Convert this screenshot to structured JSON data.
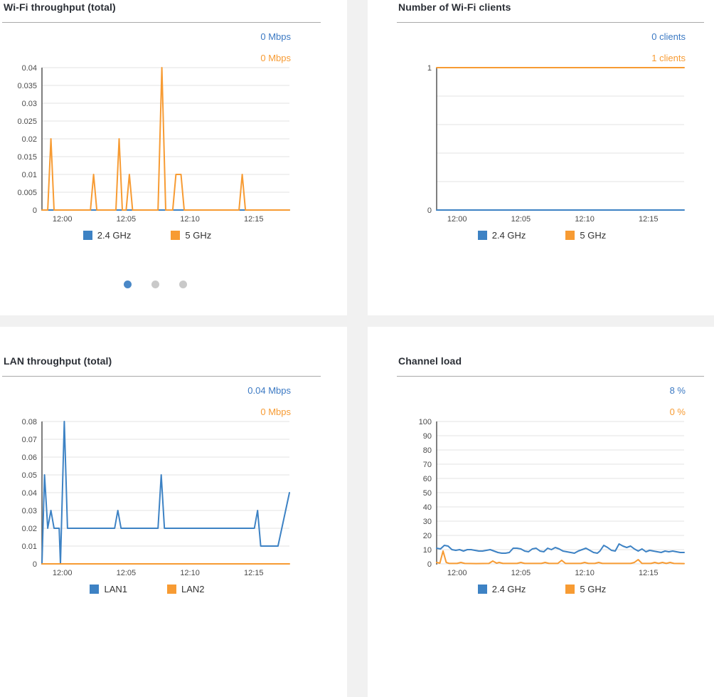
{
  "colors": {
    "blue": "#3d82c4",
    "orange": "#f79b33",
    "value_blue": "#3b79c3",
    "value_orange": "#f79b33",
    "grid_line": "#e3e3e3",
    "axis": "#555555",
    "tick_text": "#4a4a4a",
    "title_text": "#2b2f36",
    "separator": "#a9a9a9",
    "panel_bg": "#ffffff",
    "page_bg": "#f1f1f1",
    "dot_active": "#4a88c7",
    "dot_inactive": "#c9c9c9"
  },
  "panels": [
    {
      "title": "Wi-Fi throughput (total)",
      "values": [
        {
          "text": "0 Mbps",
          "series": "2.4 GHz"
        },
        {
          "text": "0 Mbps",
          "series": "5 GHz"
        }
      ],
      "legend": [
        {
          "label": "2.4 GHz",
          "color": "blue"
        },
        {
          "label": "5 GHz",
          "color": "orange"
        }
      ],
      "pager_dots": {
        "count": 3,
        "active_index": 0
      },
      "chart_index": 0
    },
    {
      "title": "Number of Wi-Fi clients",
      "values": [
        {
          "text": "0 clients",
          "series": "2.4 GHz"
        },
        {
          "text": "1 clients",
          "series": "5 GHz"
        }
      ],
      "legend": [
        {
          "label": "2.4 GHz",
          "color": "blue"
        },
        {
          "label": "5 GHz",
          "color": "orange"
        }
      ],
      "chart_index": 1
    },
    {
      "title": "LAN throughput (total)",
      "values": [
        {
          "text": "0.04 Mbps",
          "series": "LAN1"
        },
        {
          "text": "0 Mbps",
          "series": "LAN2"
        }
      ],
      "legend": [
        {
          "label": "LAN1",
          "color": "blue"
        },
        {
          "label": "LAN2",
          "color": "orange"
        }
      ],
      "chart_index": 2
    },
    {
      "title": "Channel load",
      "values": [
        {
          "text": "8 %",
          "series": "2.4 GHz"
        },
        {
          "text": "0 %",
          "series": "5 GHz"
        }
      ],
      "legend": [
        {
          "label": "2.4 GHz",
          "color": "blue"
        },
        {
          "label": "5 GHz",
          "color": "orange"
        }
      ],
      "chart_index": 3
    }
  ],
  "chart_data": [
    {
      "type": "line",
      "title": "Wi-Fi throughput (total)",
      "xlabel": "",
      "ylabel": "Mbps",
      "x_domain": [
        -1.6,
        17.8
      ],
      "x_ticks": [
        {
          "t": 0,
          "label": "12:00"
        },
        {
          "t": 5,
          "label": "12:05"
        },
        {
          "t": 10,
          "label": "12:10"
        },
        {
          "t": 15,
          "label": "12:15"
        }
      ],
      "ylim": [
        0,
        0.04
      ],
      "y_ticks": [
        {
          "v": 0,
          "label": "0"
        },
        {
          "v": 0.005,
          "label": "0.005"
        },
        {
          "v": 0.01,
          "label": "0.01"
        },
        {
          "v": 0.015,
          "label": "0.015"
        },
        {
          "v": 0.02,
          "label": "0.02"
        },
        {
          "v": 0.025,
          "label": "0.025"
        },
        {
          "v": 0.03,
          "label": "0.03"
        },
        {
          "v": 0.035,
          "label": "0.035"
        },
        {
          "v": 0.04,
          "label": "0.04"
        }
      ],
      "grid": true,
      "legend_position": "bottom",
      "series": [
        {
          "name": "2.4 GHz",
          "color": "blue",
          "points": [
            [
              -1.6,
              0
            ],
            [
              17.8,
              0
            ]
          ]
        },
        {
          "name": "5 GHz",
          "color": "orange",
          "points": [
            [
              -1.6,
              0
            ],
            [
              -1.15,
              0
            ],
            [
              -0.9,
              0.02
            ],
            [
              -0.65,
              0
            ],
            [
              2.2,
              0
            ],
            [
              2.45,
              0.01
            ],
            [
              2.7,
              0
            ],
            [
              4.2,
              0
            ],
            [
              4.45,
              0.02
            ],
            [
              4.7,
              0
            ],
            [
              5.0,
              0
            ],
            [
              5.25,
              0.01
            ],
            [
              5.5,
              0
            ],
            [
              7.5,
              0
            ],
            [
              7.8,
              0.04
            ],
            [
              8.1,
              0
            ],
            [
              8.65,
              0
            ],
            [
              8.9,
              0.01
            ],
            [
              9.3,
              0.01
            ],
            [
              9.55,
              0
            ],
            [
              13.85,
              0
            ],
            [
              14.1,
              0.01
            ],
            [
              14.35,
              0
            ],
            [
              17.8,
              0
            ]
          ]
        }
      ]
    },
    {
      "type": "line",
      "title": "Number of Wi-Fi clients",
      "xlabel": "",
      "ylabel": "clients",
      "x_domain": [
        -1.6,
        17.8
      ],
      "x_ticks": [
        {
          "t": 0,
          "label": "12:00"
        },
        {
          "t": 5,
          "label": "12:05"
        },
        {
          "t": 10,
          "label": "12:10"
        },
        {
          "t": 15,
          "label": "12:15"
        }
      ],
      "ylim": [
        0,
        1
      ],
      "y_ticks": [
        {
          "v": 0,
          "label": "0"
        },
        {
          "v": 0.2,
          "label": ""
        },
        {
          "v": 0.4,
          "label": ""
        },
        {
          "v": 0.6,
          "label": ""
        },
        {
          "v": 0.8,
          "label": ""
        },
        {
          "v": 1,
          "label": "1"
        }
      ],
      "grid": true,
      "legend_position": "bottom",
      "series": [
        {
          "name": "2.4 GHz",
          "color": "blue",
          "points": [
            [
              -1.6,
              0
            ],
            [
              17.8,
              0
            ]
          ]
        },
        {
          "name": "5 GHz",
          "color": "orange",
          "points": [
            [
              -1.6,
              1
            ],
            [
              17.8,
              1
            ]
          ]
        }
      ]
    },
    {
      "type": "line",
      "title": "LAN throughput (total)",
      "xlabel": "",
      "ylabel": "Mbps",
      "x_domain": [
        -1.6,
        17.8
      ],
      "x_ticks": [
        {
          "t": 0,
          "label": "12:00"
        },
        {
          "t": 5,
          "label": "12:05"
        },
        {
          "t": 10,
          "label": "12:10"
        },
        {
          "t": 15,
          "label": "12:15"
        }
      ],
      "ylim": [
        0,
        0.08
      ],
      "y_ticks": [
        {
          "v": 0,
          "label": "0"
        },
        {
          "v": 0.01,
          "label": "0.01"
        },
        {
          "v": 0.02,
          "label": "0.02"
        },
        {
          "v": 0.03,
          "label": "0.03"
        },
        {
          "v": 0.04,
          "label": "0.04"
        },
        {
          "v": 0.05,
          "label": "0.05"
        },
        {
          "v": 0.06,
          "label": "0.06"
        },
        {
          "v": 0.07,
          "label": "0.07"
        },
        {
          "v": 0.08,
          "label": "0.08"
        }
      ],
      "grid": true,
      "legend_position": "bottom",
      "series": [
        {
          "name": "LAN1",
          "color": "blue",
          "points": [
            [
              -1.6,
              0
            ],
            [
              -1.4,
              0.05
            ],
            [
              -1.15,
              0.02
            ],
            [
              -0.9,
              0.03
            ],
            [
              -0.65,
              0.02
            ],
            [
              -0.25,
              0.02
            ],
            [
              -0.15,
              0
            ],
            [
              0.15,
              0.08
            ],
            [
              0.4,
              0.02
            ],
            [
              4.1,
              0.02
            ],
            [
              4.35,
              0.03
            ],
            [
              4.6,
              0.02
            ],
            [
              7.5,
              0.02
            ],
            [
              7.75,
              0.05
            ],
            [
              8.0,
              0.02
            ],
            [
              15.05,
              0.02
            ],
            [
              15.3,
              0.03
            ],
            [
              15.55,
              0.01
            ],
            [
              16.9,
              0.01
            ],
            [
              17.8,
              0.04
            ]
          ]
        },
        {
          "name": "LAN2",
          "color": "orange",
          "points": [
            [
              -1.6,
              0
            ],
            [
              17.8,
              0
            ]
          ]
        }
      ]
    },
    {
      "type": "line",
      "title": "Channel load",
      "xlabel": "",
      "ylabel": "%",
      "x_domain": [
        -1.6,
        17.8
      ],
      "x_ticks": [
        {
          "t": 0,
          "label": "12:00"
        },
        {
          "t": 5,
          "label": "12:05"
        },
        {
          "t": 10,
          "label": "12:10"
        },
        {
          "t": 15,
          "label": "12:15"
        }
      ],
      "ylim": [
        0,
        100
      ],
      "y_ticks": [
        {
          "v": 0,
          "label": "0"
        },
        {
          "v": 10,
          "label": "10"
        },
        {
          "v": 20,
          "label": "20"
        },
        {
          "v": 30,
          "label": "30"
        },
        {
          "v": 40,
          "label": "40"
        },
        {
          "v": 50,
          "label": "50"
        },
        {
          "v": 60,
          "label": "60"
        },
        {
          "v": 70,
          "label": "70"
        },
        {
          "v": 80,
          "label": "80"
        },
        {
          "v": 90,
          "label": "90"
        },
        {
          "v": 100,
          "label": "100"
        }
      ],
      "grid": true,
      "legend_position": "bottom",
      "series": [
        {
          "name": "2.4 GHz",
          "color": "blue",
          "points": [
            [
              -1.6,
              11
            ],
            [
              -1.3,
              10.5
            ],
            [
              -1.0,
              13
            ],
            [
              -0.7,
              12.5
            ],
            [
              -0.4,
              10
            ],
            [
              -0.1,
              9.5
            ],
            [
              0.2,
              10
            ],
            [
              0.5,
              9
            ],
            [
              0.8,
              10
            ],
            [
              1.1,
              10
            ],
            [
              1.4,
              9.5
            ],
            [
              1.7,
              9
            ],
            [
              2.0,
              9
            ],
            [
              2.3,
              9.5
            ],
            [
              2.6,
              10
            ],
            [
              2.9,
              9
            ],
            [
              3.2,
              8
            ],
            [
              3.5,
              7.5
            ],
            [
              3.8,
              7.5
            ],
            [
              4.1,
              8
            ],
            [
              4.4,
              11
            ],
            [
              4.7,
              11
            ],
            [
              5.0,
              10.5
            ],
            [
              5.3,
              9
            ],
            [
              5.6,
              8.5
            ],
            [
              5.9,
              10.5
            ],
            [
              6.2,
              11
            ],
            [
              6.5,
              9
            ],
            [
              6.8,
              8.5
            ],
            [
              7.1,
              11
            ],
            [
              7.4,
              10
            ],
            [
              7.7,
              11.5
            ],
            [
              8.0,
              10.5
            ],
            [
              8.3,
              9
            ],
            [
              8.6,
              8.5
            ],
            [
              8.9,
              8
            ],
            [
              9.2,
              7.5
            ],
            [
              9.5,
              9
            ],
            [
              9.8,
              10
            ],
            [
              10.1,
              11
            ],
            [
              10.4,
              9.5
            ],
            [
              10.7,
              8
            ],
            [
              11.0,
              7.5
            ],
            [
              11.2,
              9
            ],
            [
              11.5,
              13
            ],
            [
              11.8,
              11.5
            ],
            [
              12.1,
              9.5
            ],
            [
              12.4,
              9
            ],
            [
              12.7,
              14
            ],
            [
              13.0,
              12.5
            ],
            [
              13.3,
              11.5
            ],
            [
              13.6,
              12.5
            ],
            [
              13.9,
              10.5
            ],
            [
              14.2,
              9
            ],
            [
              14.5,
              10.5
            ],
            [
              14.8,
              8.5
            ],
            [
              15.1,
              9.5
            ],
            [
              15.4,
              9
            ],
            [
              15.7,
              8.5
            ],
            [
              16.0,
              8
            ],
            [
              16.3,
              9
            ],
            [
              16.6,
              8.5
            ],
            [
              16.9,
              9
            ],
            [
              17.2,
              8.5
            ],
            [
              17.5,
              8
            ],
            [
              17.8,
              8
            ]
          ]
        },
        {
          "name": "5 GHz",
          "color": "orange",
          "points": [
            [
              -1.6,
              1
            ],
            [
              -1.35,
              0.5
            ],
            [
              -1.1,
              9
            ],
            [
              -0.85,
              1
            ],
            [
              -0.6,
              0.3
            ],
            [
              0.0,
              0.3
            ],
            [
              0.3,
              1
            ],
            [
              0.6,
              0.3
            ],
            [
              1.5,
              0.2
            ],
            [
              2.5,
              0.3
            ],
            [
              2.8,
              2
            ],
            [
              3.1,
              0.5
            ],
            [
              3.3,
              1
            ],
            [
              3.6,
              0.3
            ],
            [
              4.7,
              0.3
            ],
            [
              5.0,
              1
            ],
            [
              5.3,
              0.3
            ],
            [
              6.6,
              0.3
            ],
            [
              6.9,
              1
            ],
            [
              7.2,
              0.3
            ],
            [
              7.9,
              0.3
            ],
            [
              8.2,
              2.5
            ],
            [
              8.5,
              0.3
            ],
            [
              9.7,
              0.3
            ],
            [
              10.0,
              1
            ],
            [
              10.3,
              0.3
            ],
            [
              10.8,
              0.3
            ],
            [
              11.1,
              1
            ],
            [
              11.4,
              0.3
            ],
            [
              13.6,
              0.3
            ],
            [
              13.9,
              1
            ],
            [
              14.2,
              3
            ],
            [
              14.5,
              0.3
            ],
            [
              15.2,
              0.3
            ],
            [
              15.5,
              1
            ],
            [
              15.8,
              0.3
            ],
            [
              16.1,
              1
            ],
            [
              16.4,
              0.3
            ],
            [
              16.7,
              1
            ],
            [
              17.0,
              0.3
            ],
            [
              17.8,
              0.2
            ]
          ]
        }
      ]
    }
  ]
}
